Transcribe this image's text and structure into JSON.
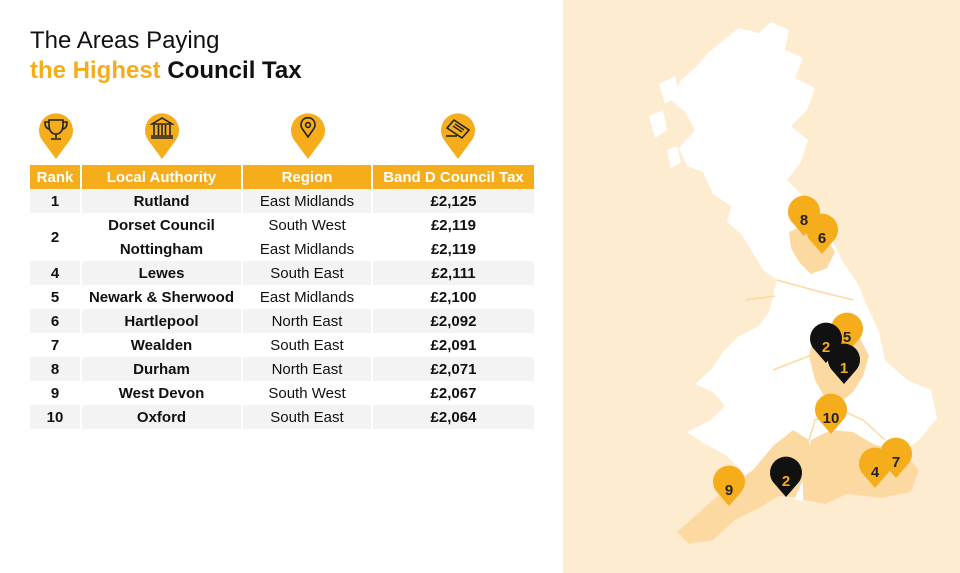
{
  "title": {
    "line1": "The Areas Paying",
    "highlight": "the Highest",
    "rest": "Council Tax"
  },
  "header_icons": [
    "trophy-icon",
    "bank-building-icon",
    "location-icon",
    "bill-icon"
  ],
  "table": {
    "headers": {
      "rank": "Rank",
      "authority": "Local Authority",
      "region": "Region",
      "tax": "Band D Council Tax"
    },
    "rows": [
      {
        "rank": "1",
        "authority": "Rutland",
        "region": "East Midlands",
        "tax": "£2,125"
      },
      {
        "rank": "2",
        "authority": "Dorset Council",
        "region": "South West",
        "tax": "£2,119"
      },
      {
        "rank": "",
        "authority": "Nottingham",
        "region": "East Midlands",
        "tax": "£2,119"
      },
      {
        "rank": "4",
        "authority": "Lewes",
        "region": "South East",
        "tax": "£2,111"
      },
      {
        "rank": "5",
        "authority": "Newark & Sherwood",
        "region": "East Midlands",
        "tax": "£2,100"
      },
      {
        "rank": "6",
        "authority": "Hartlepool",
        "region": "North East",
        "tax": "£2,092"
      },
      {
        "rank": "7",
        "authority": "Wealden",
        "region": "South East",
        "tax": "£2,091"
      },
      {
        "rank": "8",
        "authority": "Durham",
        "region": "North East",
        "tax": "£2,071"
      },
      {
        "rank": "9",
        "authority": "West Devon",
        "region": "South West",
        "tax": "£2,067"
      },
      {
        "rank": "10",
        "authority": "Oxford",
        "region": "South East",
        "tax": "£2,064"
      }
    ]
  },
  "map": {
    "markers": [
      "8",
      "6",
      "5",
      "2",
      "1",
      "10",
      "2",
      "4",
      "7",
      "9"
    ],
    "colors": {
      "accent": "#f6ad1c",
      "highlight_region": "#fcd9a0",
      "background": "#fdeccf",
      "land": "#ffffff",
      "dark_marker": "#111111"
    }
  }
}
